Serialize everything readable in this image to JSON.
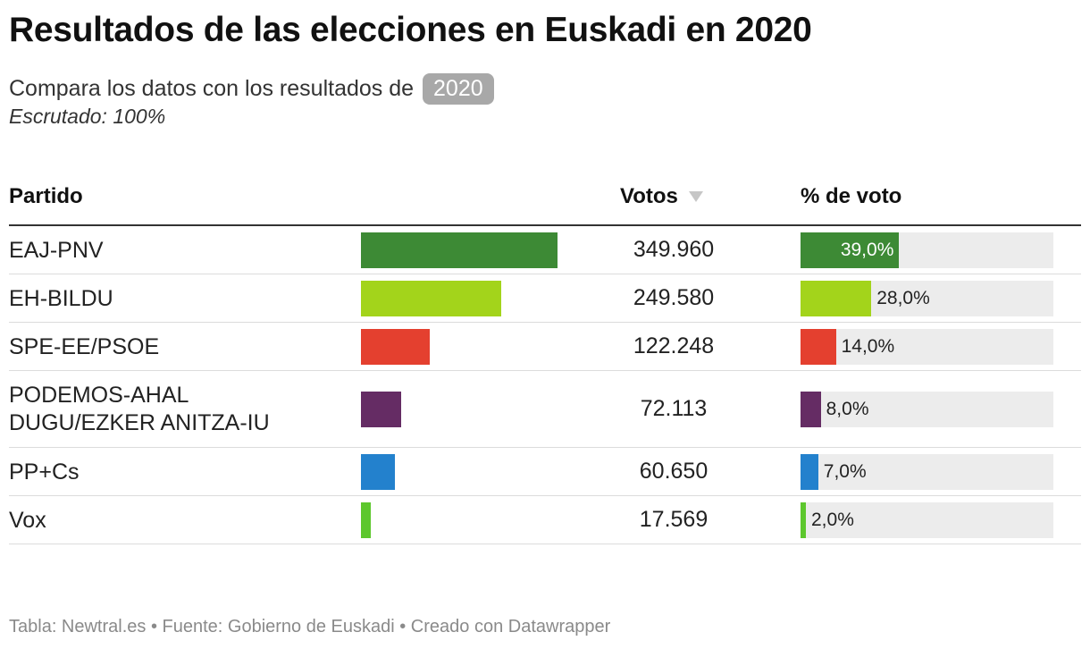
{
  "header": {
    "title": "Resultados de las elecciones en Euskadi en 2020",
    "compare_text": "Compara los datos con los resultados de",
    "compare_year": "2020",
    "scrutiny": "Escrutado: 100%"
  },
  "columns": {
    "party": "Partido",
    "votes": "Votos",
    "percent": "% de voto"
  },
  "chart_data": {
    "type": "table",
    "title": "Resultados de las elecciones en Euskadi en 2020",
    "rows": [
      {
        "party": "EAJ-PNV",
        "votes": 349960,
        "votes_label": "349.960",
        "percent": 39.0,
        "percent_label": "39,0%",
        "color": "#3d8a35"
      },
      {
        "party": "EH-BILDU",
        "votes": 249580,
        "votes_label": "249.580",
        "percent": 28.0,
        "percent_label": "28,0%",
        "color": "#a3d41b"
      },
      {
        "party": "SPE-EE/PSOE",
        "votes": 122248,
        "votes_label": "122.248",
        "percent": 14.0,
        "percent_label": "14,0%",
        "color": "#e4402f"
      },
      {
        "party": "PODEMOS-AHAL DUGU/EZKER ANITZA-IU",
        "votes": 72113,
        "votes_label": "72.113",
        "percent": 8.0,
        "percent_label": "8,0%",
        "color": "#652c64"
      },
      {
        "party": "PP+Cs",
        "votes": 60650,
        "votes_label": "60.650",
        "percent": 7.0,
        "percent_label": "7,0%",
        "color": "#2381cd"
      },
      {
        "party": "Vox",
        "votes": 17569,
        "votes_label": "17.569",
        "percent": 2.0,
        "percent_label": "2,0%",
        "color": "#5dc72d"
      }
    ],
    "max_votes": 349960,
    "percent_range": [
      0,
      100
    ]
  },
  "footer": {
    "text": "Tabla: Newtral.es • Fuente: Gobierno de Euskadi • Creado con Datawrapper"
  }
}
